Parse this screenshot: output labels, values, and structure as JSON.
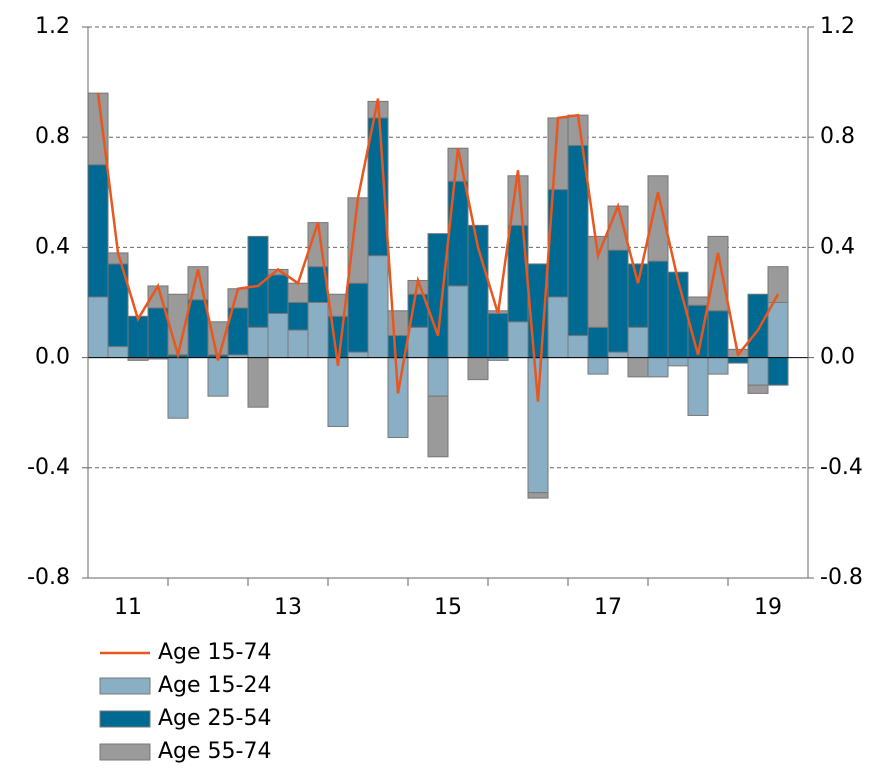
{
  "chart_data": {
    "type": "bar",
    "x": [
      11.125,
      11.375,
      11.625,
      11.875,
      12.125,
      12.375,
      12.625,
      12.875,
      13.125,
      13.375,
      13.625,
      13.875,
      14.125,
      14.375,
      14.625,
      14.875,
      15.125,
      15.375,
      15.625,
      15.875,
      16.125,
      16.375,
      16.625,
      16.875,
      17.125,
      17.375,
      17.625,
      17.875,
      18.125,
      18.375,
      18.625,
      18.875,
      19.125,
      19.375,
      19.625
    ],
    "xlim": [
      11,
      20
    ],
    "xticks": [
      {
        "value": 11.5,
        "label": "11"
      },
      {
        "value": 13.5,
        "label": "13"
      },
      {
        "value": 15.5,
        "label": "15"
      },
      {
        "value": 17.5,
        "label": "17"
      },
      {
        "value": 19.5,
        "label": "19"
      }
    ],
    "x_minor_ticks": [
      12,
      13,
      14,
      15,
      16,
      17,
      18,
      19
    ],
    "ylim": [
      -0.8,
      1.2
    ],
    "yticks": [
      {
        "value": -0.8,
        "label": "-0.8"
      },
      {
        "value": -0.4,
        "label": "-0.4"
      },
      {
        "value": 0,
        "label": "0.0"
      },
      {
        "value": 0.4,
        "label": "0.4"
      },
      {
        "value": 0.8,
        "label": "0.8"
      },
      {
        "value": 1.2,
        "label": "1.2"
      }
    ],
    "y2lim": [
      -0.8,
      1.2
    ],
    "y2ticks": [
      {
        "value": -0.8,
        "label": "-0.8"
      },
      {
        "value": -0.4,
        "label": "-0.4"
      },
      {
        "value": 0,
        "label": "0.0"
      },
      {
        "value": 0.4,
        "label": "0.4"
      },
      {
        "value": 0.8,
        "label": "0.8"
      },
      {
        "value": 1.2,
        "label": "1.2"
      }
    ],
    "grid": true,
    "series": [
      {
        "name": "Age 15-74",
        "type": "line",
        "color": "#e8571e",
        "values": [
          0.96,
          0.38,
          0.14,
          0.26,
          0.01,
          0.32,
          -0.01,
          0.25,
          0.26,
          0.32,
          0.27,
          0.49,
          -0.03,
          0.58,
          0.94,
          -0.13,
          0.28,
          0.08,
          0.76,
          0.4,
          0.16,
          0.68,
          -0.16,
          0.87,
          0.88,
          0.37,
          0.55,
          0.27,
          0.6,
          0.28,
          0.01,
          0.38,
          0.01,
          0.1,
          0.23
        ]
      },
      {
        "name": "Age 15-24",
        "type": "bar",
        "color": "#8aafc4",
        "values": [
          0.22,
          0.04,
          0,
          -0.005,
          -0.22,
          0,
          -0.14,
          0.01,
          0.11,
          0.16,
          0.1,
          0.2,
          -0.25,
          0.02,
          0.37,
          -0.29,
          0.11,
          -0.14,
          0.26,
          0,
          -0.01,
          0.13,
          -0.49,
          0.22,
          0.08,
          -0.06,
          0.02,
          0.11,
          -0.07,
          -0.03,
          -0.21,
          -0.06,
          0,
          -0.1,
          0.2
        ]
      },
      {
        "name": "Age 25-54",
        "type": "bar",
        "color": "#006a92",
        "values": [
          0.48,
          0.3,
          0.15,
          0.18,
          0.01,
          0.21,
          0.01,
          0.17,
          0.33,
          0.14,
          0.1,
          0.13,
          0.15,
          0.25,
          0.5,
          0.08,
          0.12,
          0.45,
          0.38,
          0.48,
          0.16,
          0.35,
          0.34,
          0.39,
          0.69,
          0.11,
          0.37,
          0.23,
          0.35,
          0.31,
          0.19,
          0.17,
          -0.02,
          0.23,
          -0.1
        ]
      },
      {
        "name": "Age 55-74",
        "type": "bar",
        "color": "#9a9a9a",
        "values": [
          0.26,
          0.04,
          -0.01,
          0.08,
          0.22,
          0.12,
          0.12,
          0.07,
          -0.18,
          0.02,
          0.07,
          0.16,
          0.08,
          0.31,
          0.06,
          0.09,
          0.05,
          -0.22,
          0.12,
          -0.08,
          0.01,
          0.18,
          -0.02,
          0.26,
          0.11,
          0.33,
          0.16,
          -0.07,
          0.31,
          0,
          0.03,
          0.27,
          0.03,
          -0.03,
          0.13
        ]
      }
    ]
  }
}
